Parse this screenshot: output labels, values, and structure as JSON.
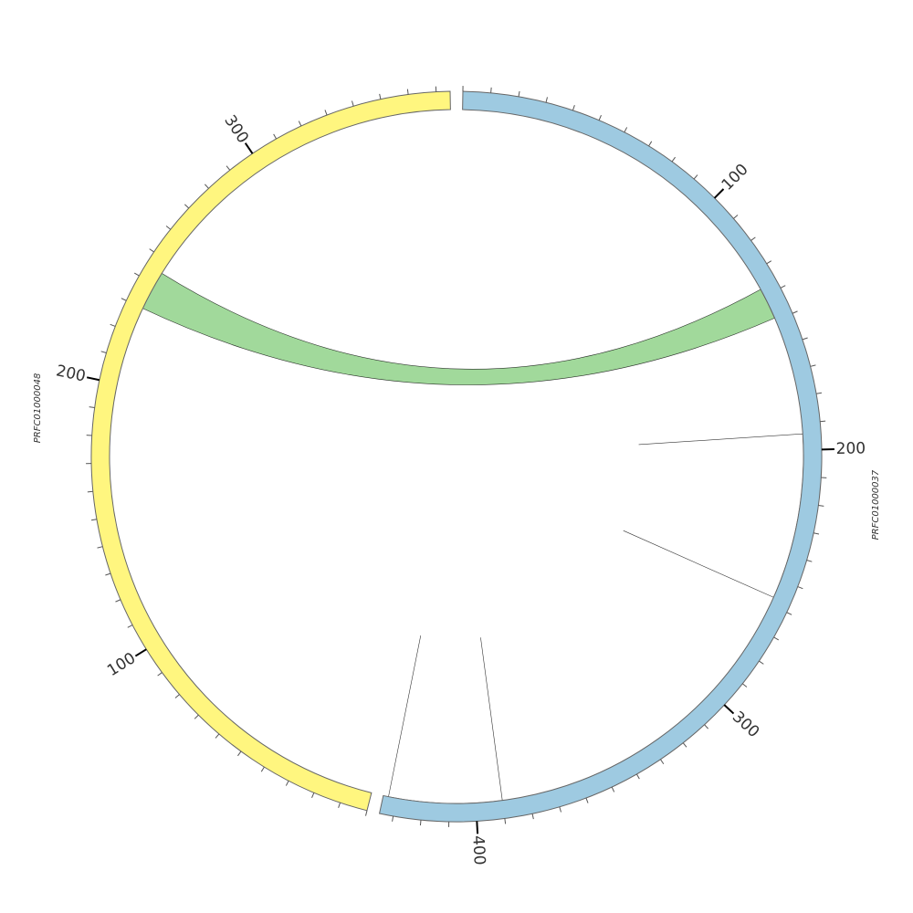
{
  "chart_data": {
    "type": "chord",
    "segments": [
      {
        "name": "PRFC01000037",
        "length": 435,
        "color": "#9ecae1",
        "ticks": [
          100,
          200,
          300,
          400
        ]
      },
      {
        "name": "PRFC01000048",
        "length": 375,
        "color": "#fff67f",
        "ticks": [
          100,
          200,
          300
        ]
      }
    ],
    "minor_tick_interval": 10,
    "links": [
      {
        "source": {
          "segment": 0,
          "start": 137,
          "end": 149
        },
        "target": {
          "segment": 1,
          "start": 230,
          "end": 245
        },
        "color": "#a1d99b"
      },
      {
        "source": {
          "segment": 0,
          "start": 194,
          "end": 257
        },
        "target": {
          "segment": 0,
          "start": 194,
          "end": 257
        },
        "color": "#ffffff"
      },
      {
        "source": {
          "segment": 0,
          "start": 390,
          "end": 433
        },
        "target": {
          "segment": 0,
          "start": 390,
          "end": 433
        },
        "color": "#ffffff"
      }
    ]
  }
}
